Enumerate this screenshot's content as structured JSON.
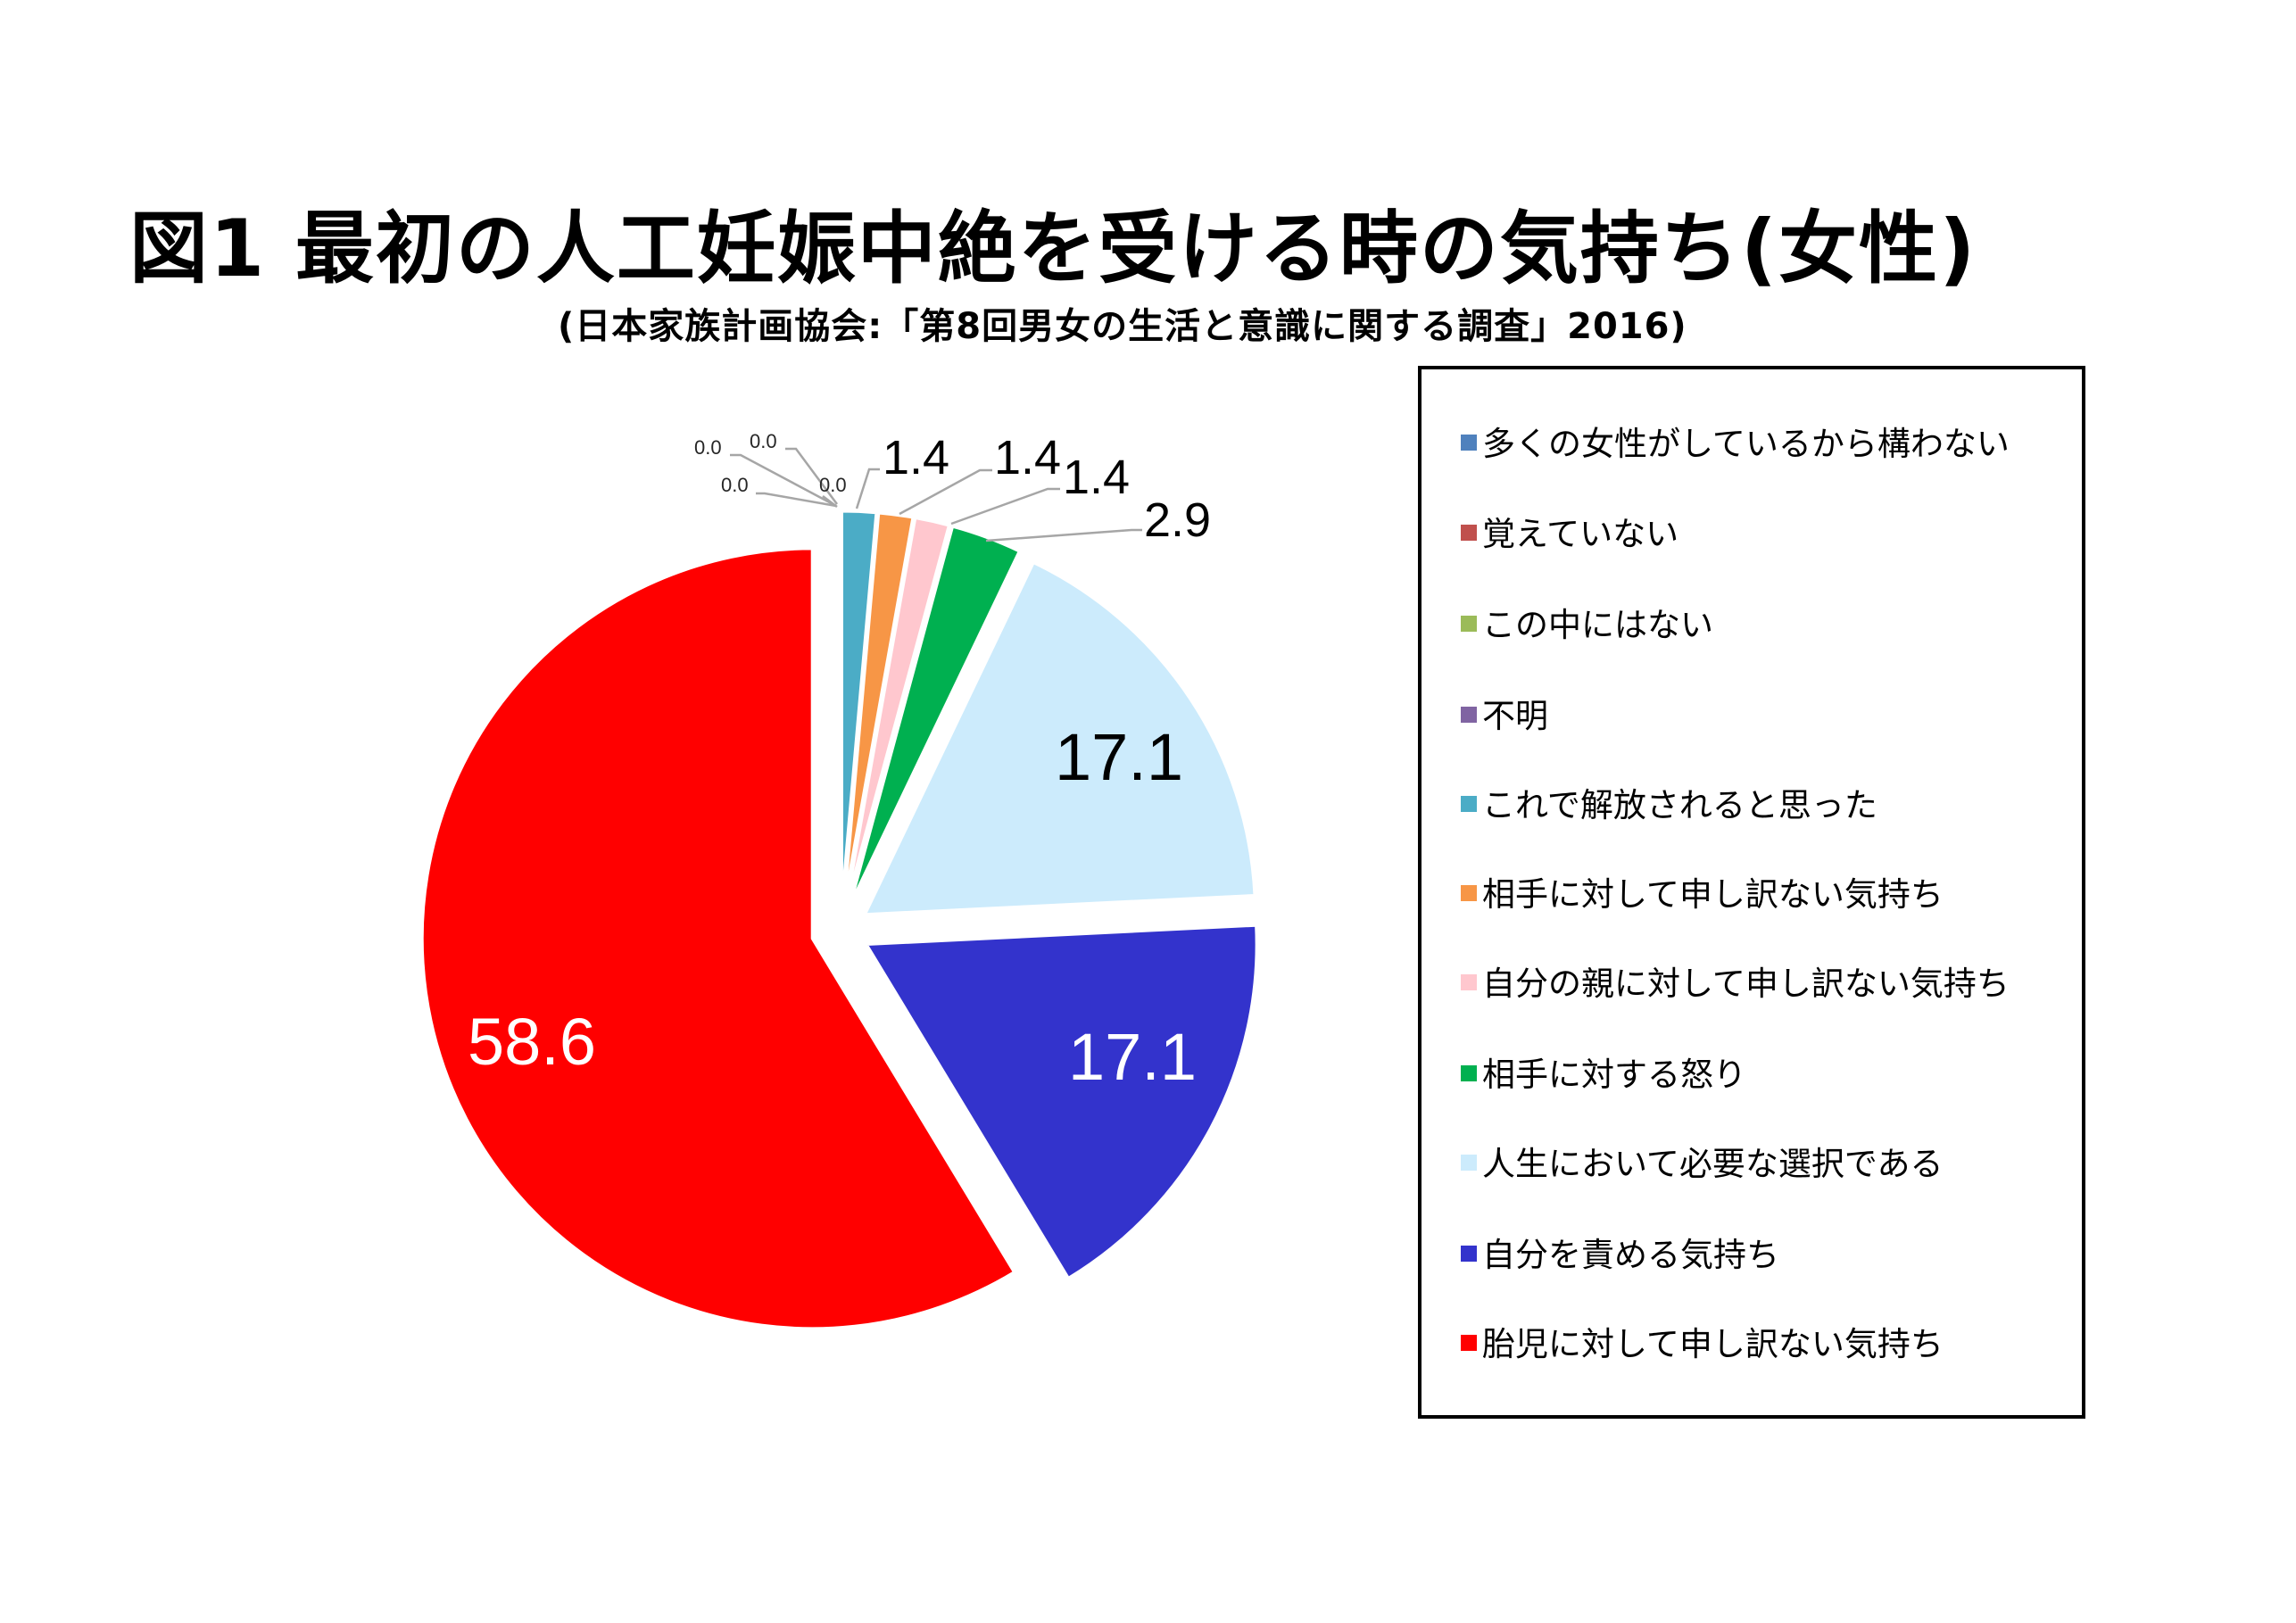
{
  "header": {
    "title": "図1  最初の人工妊娠中絶を受ける時の気持ち(女性)",
    "subtitle": "(日本家族計画協会:「第8回男女の生活と意識に関する調査」2016)"
  },
  "legend": {
    "items": [
      {
        "label": "多くの女性がしているから構わない",
        "color": "#4F81BD"
      },
      {
        "label": "覚えていない",
        "color": "#C0504D"
      },
      {
        "label": "この中にはない",
        "color": "#9BBB59"
      },
      {
        "label": "不明",
        "color": "#8064A2"
      },
      {
        "label": "これで解放されると思った",
        "color": "#4BACC6"
      },
      {
        "label": "相手に対して申し訳ない気持ち",
        "color": "#F79646"
      },
      {
        "label": "自分の親に対して申し訳ない気持ち",
        "color": "#FFC7CE"
      },
      {
        "label": "相手に対する怒り",
        "color": "#00B050"
      },
      {
        "label": "人生において必要な選択である",
        "color": "#CCEBFC"
      },
      {
        "label": "自分を責める気持ち",
        "color": "#3333CC"
      },
      {
        "label": "胎児に対して申し訳ない気持ち",
        "color": "#FF0000"
      }
    ]
  },
  "labels": {
    "l0": "0.0",
    "l1": "0.0",
    "l2": "0.0",
    "l3": "0.0",
    "l4": "1.4",
    "l5": "1.4",
    "l6": "1.4",
    "l7": "2.9",
    "l8": "17.1",
    "l9": "17.1",
    "l10": "58.6"
  },
  "chart_data": {
    "type": "pie",
    "title": "図1 最初の人工妊娠中絶を受ける時の気持ち(女性)",
    "subtitle": "(日本家族計画協会:「第8回男女の生活と意識に関する調査」2016)",
    "unit": "%",
    "start_angle": "12 o'clock, clockwise",
    "exploded": true,
    "legend_position": "right",
    "categories": [
      "多くの女性がしているから構わない",
      "覚えていない",
      "この中にはない",
      "不明",
      "これで解放されると思った",
      "相手に対して申し訳ない気持ち",
      "自分の親に対して申し訳ない気持ち",
      "相手に対する怒り",
      "人生において必要な選択である",
      "自分を責める気持ち",
      "胎児に対して申し訳ない気持ち"
    ],
    "values": [
      0.0,
      0.0,
      0.0,
      0.0,
      1.4,
      1.4,
      1.4,
      2.9,
      17.1,
      17.1,
      58.6
    ],
    "colors": [
      "#4F81BD",
      "#C0504D",
      "#9BBB59",
      "#8064A2",
      "#4BACC6",
      "#F79646",
      "#FFC7CE",
      "#00B050",
      "#CCEBFC",
      "#3333CC",
      "#FF0000"
    ]
  }
}
